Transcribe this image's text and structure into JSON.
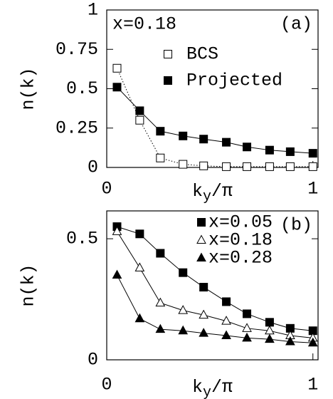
{
  "chart_data": [
    {
      "type": "line",
      "panel_label": "(a)",
      "annotation": "x=0.18",
      "y_label": "n(k)",
      "x_label": {
        "base": "k",
        "sub": "y",
        "rest": "/π"
      },
      "x": [
        0.05,
        0.16,
        0.26,
        0.37,
        0.47,
        0.58,
        0.68,
        0.79,
        0.89,
        1.0
      ],
      "xlim": [
        0,
        1.025
      ],
      "xticks": [
        0,
        1
      ],
      "ylim": [
        0,
        1
      ],
      "yticks": [
        0,
        0.25,
        0.5,
        0.75,
        1
      ],
      "series": [
        {
          "name": "BCS",
          "color": "#000000",
          "marker": "square-open",
          "linestyle": "dotted",
          "values": [
            0.63,
            0.3,
            0.06,
            0.02,
            0.01,
            0.005,
            0.005,
            0.005,
            0.005,
            0.005
          ]
        },
        {
          "name": "Projected",
          "color": "#000000",
          "marker": "square",
          "linestyle": "solid",
          "values": [
            0.51,
            0.36,
            0.23,
            0.2,
            0.18,
            0.16,
            0.13,
            0.11,
            0.1,
            0.09
          ]
        }
      ]
    },
    {
      "type": "line",
      "panel_label": "(b)",
      "y_label": "n(k)",
      "x_label": {
        "base": "k",
        "sub": "y",
        "rest": "/π"
      },
      "x": [
        0.05,
        0.16,
        0.26,
        0.37,
        0.47,
        0.58,
        0.68,
        0.79,
        0.89,
        1.0
      ],
      "xlim": [
        0,
        1.025
      ],
      "xticks": [
        0,
        1
      ],
      "ylim": [
        0,
        0.615
      ],
      "yticks": [
        0,
        0.5
      ],
      "series": [
        {
          "name": "x=0.05",
          "color": "#000000",
          "marker": "square",
          "linestyle": "solid",
          "values": [
            0.55,
            0.52,
            0.44,
            0.36,
            0.3,
            0.24,
            0.19,
            0.155,
            0.13,
            0.12
          ]
        },
        {
          "name": "x=0.18",
          "color": "#000000",
          "marker": "triangle-open",
          "linestyle": "solid",
          "values": [
            0.53,
            0.38,
            0.235,
            0.204,
            0.185,
            0.16,
            0.13,
            0.12,
            0.1,
            0.09
          ]
        },
        {
          "name": "x=0.28",
          "color": "#000000",
          "marker": "triangle",
          "linestyle": "solid",
          "values": [
            0.35,
            0.17,
            0.126,
            0.12,
            0.11,
            0.1,
            0.09,
            0.085,
            0.075,
            0.07
          ]
        }
      ]
    }
  ]
}
